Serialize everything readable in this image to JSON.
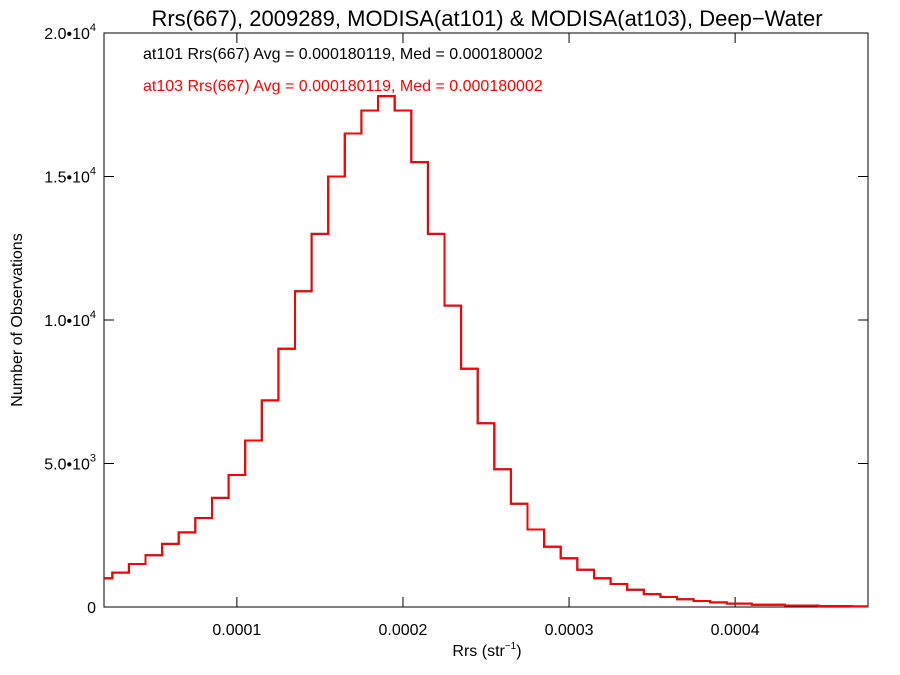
{
  "chart_data": {
    "type": "histogram",
    "title": "Rrs(667), 2009289, MODISA(at101) & MODISA(at103), Deep−Water",
    "xlabel": "Rrs (str",
    "xlabel_sup": "−1",
    "xlabel_tail": ")",
    "ylabel": "Number of Observations",
    "xlim": [
      2e-05,
      0.00048
    ],
    "ylim": [
      0,
      20000
    ],
    "x_ticks": [
      {
        "value": 0.0001,
        "label": "0.0001"
      },
      {
        "value": 0.0002,
        "label": "0.0002"
      },
      {
        "value": 0.0003,
        "label": "0.0003"
      },
      {
        "value": 0.0004,
        "label": "0.0004"
      }
    ],
    "y_ticks": [
      {
        "value": 0,
        "base": "0",
        "exp": ""
      },
      {
        "value": 5000,
        "base": "5.0•10",
        "exp": "3"
      },
      {
        "value": 10000,
        "base": "1.0•10",
        "exp": "4"
      },
      {
        "value": 15000,
        "base": "1.5•10",
        "exp": "4"
      },
      {
        "value": 20000,
        "base": "2.0•10",
        "exp": "4"
      }
    ],
    "annotations": [
      {
        "text": "at101 Rrs(667) Avg = 0.000180119, Med = 0.000180002",
        "color": "#000000"
      },
      {
        "text": "at103 Rrs(667) Avg = 0.000180119, Med = 0.000180002",
        "color": "#ff0000"
      }
    ],
    "series": [
      {
        "name": "at101",
        "color": "#000000",
        "x": [
          2e-05,
          3e-05,
          4e-05,
          5e-05,
          6e-05,
          7e-05,
          8e-05,
          9e-05,
          0.0001,
          0.00011,
          0.00012,
          0.00013,
          0.00014,
          0.00015,
          0.00016,
          0.00017,
          0.00018,
          0.00019,
          0.0002,
          0.00021,
          0.00022,
          0.00023,
          0.00024,
          0.00025,
          0.00026,
          0.00027,
          0.00028,
          0.00029,
          0.0003,
          0.00031,
          0.00032,
          0.00033,
          0.00034,
          0.00035,
          0.00036,
          0.00037,
          0.00038,
          0.00039,
          0.0004,
          0.00042,
          0.00044,
          0.00046,
          0.00048
        ],
        "values": [
          1000,
          1200,
          1500,
          1800,
          2200,
          2600,
          3100,
          3800,
          4600,
          5800,
          7200,
          9000,
          11000,
          13000,
          15000,
          16500,
          17300,
          17800,
          17300,
          15500,
          13000,
          10500,
          8300,
          6400,
          4800,
          3600,
          2700,
          2100,
          1700,
          1300,
          1000,
          800,
          600,
          450,
          350,
          270,
          210,
          160,
          120,
          80,
          50,
          30,
          20
        ]
      },
      {
        "name": "at103",
        "color": "#ff0000",
        "x": [
          2e-05,
          3e-05,
          4e-05,
          5e-05,
          6e-05,
          7e-05,
          8e-05,
          9e-05,
          0.0001,
          0.00011,
          0.00012,
          0.00013,
          0.00014,
          0.00015,
          0.00016,
          0.00017,
          0.00018,
          0.00019,
          0.0002,
          0.00021,
          0.00022,
          0.00023,
          0.00024,
          0.00025,
          0.00026,
          0.00027,
          0.00028,
          0.00029,
          0.0003,
          0.00031,
          0.00032,
          0.00033,
          0.00034,
          0.00035,
          0.00036,
          0.00037,
          0.00038,
          0.00039,
          0.0004,
          0.00042,
          0.00044,
          0.00046,
          0.00048
        ],
        "values": [
          1000,
          1200,
          1500,
          1800,
          2200,
          2600,
          3100,
          3800,
          4600,
          5800,
          7200,
          9000,
          11000,
          13000,
          15000,
          16500,
          17300,
          17800,
          17300,
          15500,
          13000,
          10500,
          8300,
          6400,
          4800,
          3600,
          2700,
          2100,
          1700,
          1300,
          1000,
          800,
          600,
          450,
          350,
          270,
          210,
          160,
          120,
          80,
          50,
          30,
          20
        ]
      }
    ],
    "grid": false,
    "legend": "top-left"
  }
}
